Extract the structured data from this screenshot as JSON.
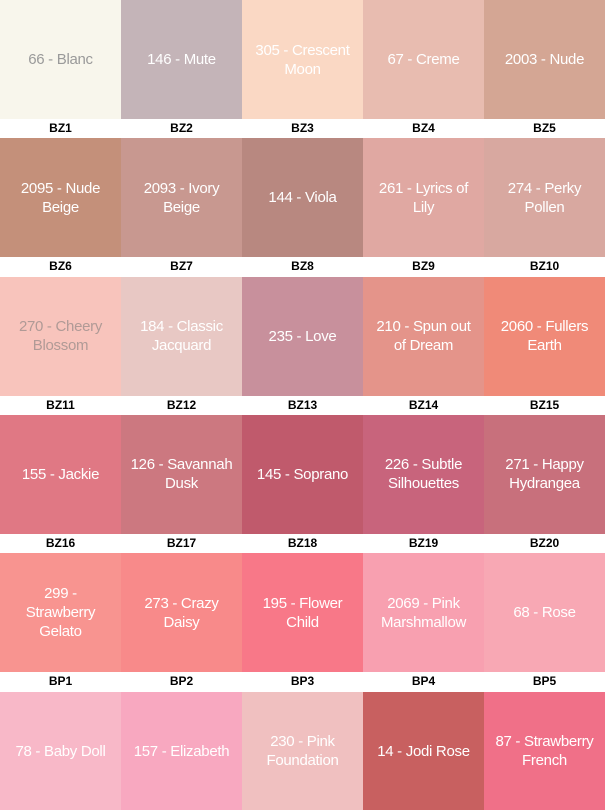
{
  "rows": [
    {
      "swatches": [
        {
          "name": "66 - Blanc",
          "code": "BZ1",
          "color": "#f8f6ec",
          "text_color": "#9a9a9a"
        },
        {
          "name": "146 - Mute",
          "code": "BZ2",
          "color": "#c4b4b8",
          "text_color": "#ffffff"
        },
        {
          "name": "305 - Crescent Moon",
          "code": "BZ3",
          "color": "#fad8c4",
          "text_color": "#ffffff"
        },
        {
          "name": "67 - Creme",
          "code": "BZ4",
          "color": "#e8bcb0",
          "text_color": "#ffffff"
        },
        {
          "name": "2003 - Nude",
          "code": "BZ5",
          "color": "#d4a694",
          "text_color": "#ffffff"
        }
      ]
    },
    {
      "swatches": [
        {
          "name": "2095 - Nude Beige",
          "code": "BZ6",
          "color": "#c4907a",
          "text_color": "#ffffff"
        },
        {
          "name": "2093 - Ivory Beige",
          "code": "BZ7",
          "color": "#c89890",
          "text_color": "#ffffff"
        },
        {
          "name": "144 - Viola",
          "code": "BZ8",
          "color": "#b88880",
          "text_color": "#ffffff"
        },
        {
          "name": "261 - Lyrics of Lily",
          "code": "BZ9",
          "color": "#e0a8a2",
          "text_color": "#ffffff"
        },
        {
          "name": "274 - Perky Pollen",
          "code": "BZ10",
          "color": "#d8a8a0",
          "text_color": "#ffffff"
        }
      ]
    },
    {
      "swatches": [
        {
          "name": "270 - Cheery Blossom",
          "code": "BZ11",
          "color": "#f8c4bc",
          "text_color": "#b09a96"
        },
        {
          "name": "184 - Classic Jacquard",
          "code": "BZ12",
          "color": "#e8c8c4",
          "text_color": "#ffffff"
        },
        {
          "name": "235 - Love",
          "code": "BZ13",
          "color": "#c8909c",
          "text_color": "#ffffff"
        },
        {
          "name": "210 - Spun out of Dream",
          "code": "BZ14",
          "color": "#e4948a",
          "text_color": "#ffffff"
        },
        {
          "name": "2060 - Fullers Earth",
          "code": "BZ15",
          "color": "#f08a78",
          "text_color": "#ffffff"
        }
      ]
    },
    {
      "swatches": [
        {
          "name": "155 - Jackie",
          "code": "BZ16",
          "color": "#e07884",
          "text_color": "#ffffff"
        },
        {
          "name": "126 - Savannah Dusk",
          "code": "BZ17",
          "color": "#cc7880",
          "text_color": "#ffffff"
        },
        {
          "name": "145 - Soprano",
          "code": "BZ18",
          "color": "#c05a6c",
          "text_color": "#ffffff"
        },
        {
          "name": "226 - Subtle Silhouettes",
          "code": "BZ19",
          "color": "#c8647c",
          "text_color": "#ffffff"
        },
        {
          "name": "271 - Happy Hydrangea",
          "code": "BZ20",
          "color": "#c8707c",
          "text_color": "#ffffff"
        }
      ]
    },
    {
      "swatches": [
        {
          "name": "299 - Strawberry Gelato",
          "code": "BP1",
          "color": "#f89490",
          "text_color": "#ffffff"
        },
        {
          "name": "273 - Crazy Daisy",
          "code": "BP2",
          "color": "#f88a8a",
          "text_color": "#ffffff"
        },
        {
          "name": "195 - Flower Child",
          "code": "BP3",
          "color": "#f87888",
          "text_color": "#ffffff"
        },
        {
          "name": "2069 - Pink Marshmallow",
          "code": "BP4",
          "color": "#f8a0b0",
          "text_color": "#ffffff"
        },
        {
          "name": "68 - Rose",
          "code": "BP5",
          "color": "#f8a8b4",
          "text_color": "#ffffff"
        }
      ]
    },
    {
      "swatches": [
        {
          "name": "78 - Baby Doll",
          "color": "#f8b8c8",
          "text_color": "#ffffff"
        },
        {
          "name": "157 - Elizabeth",
          "color": "#f8a8c0",
          "text_color": "#ffffff"
        },
        {
          "name": "230 - Pink Foundation",
          "color": "#f0c0c0",
          "text_color": "#ffffff"
        },
        {
          "name": "14 - Jodi Rose",
          "color": "#c86060",
          "text_color": "#ffffff"
        },
        {
          "name": "87 - Strawberry French",
          "color": "#f07088",
          "text_color": "#ffffff"
        }
      ]
    }
  ]
}
